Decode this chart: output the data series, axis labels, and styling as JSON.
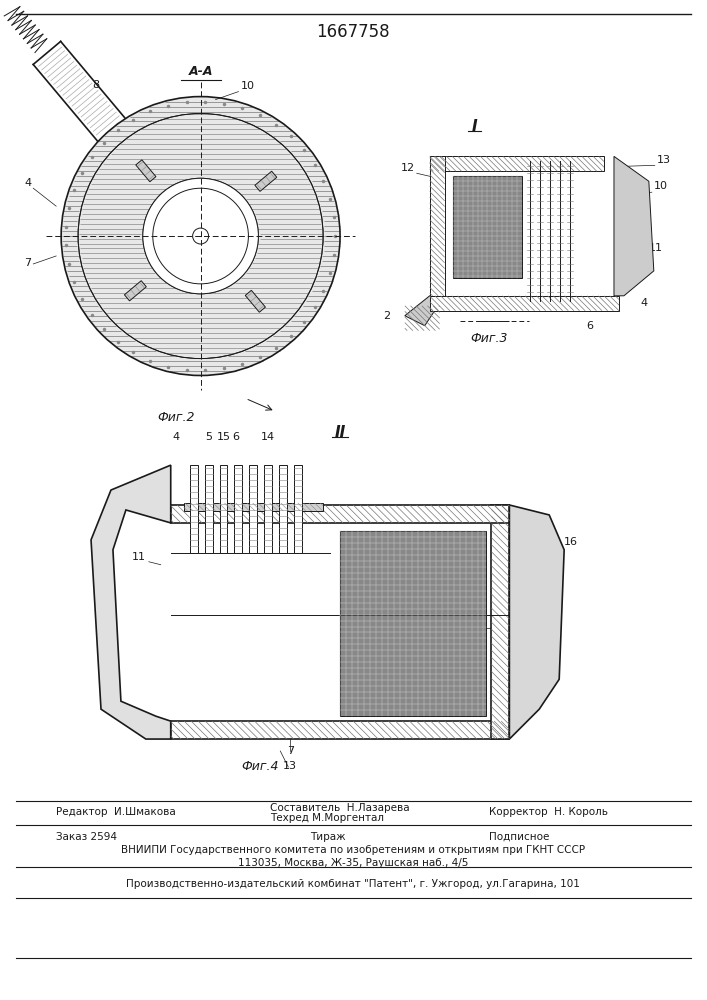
{
  "title": "1667758",
  "bg_color": "#ffffff",
  "line_color": "#1a1a1a",
  "footer_line1_left": "Редактор  И.Шмакова",
  "footer_line1_mid1": "Составитель  Н.Лазарева",
  "footer_line1_mid2": "Техред М.Моргентал",
  "footer_line1_right": "Корректор  Н. Король",
  "footer_line2_left": "Заказ 2594",
  "footer_line2_mid": "Тираж",
  "footer_line2_right": "Подписное",
  "footer_line3": "ВНИИПИ Государственного комитета по изобретениям и открытиям при ГКНТ СССР",
  "footer_line4": "113035, Москва, Ж-35, Раушская наб., 4/5",
  "footer_line5": "Производственно-издательский комбинат \"Патент\", г. Ужгород, ул.Гагарина, 101"
}
